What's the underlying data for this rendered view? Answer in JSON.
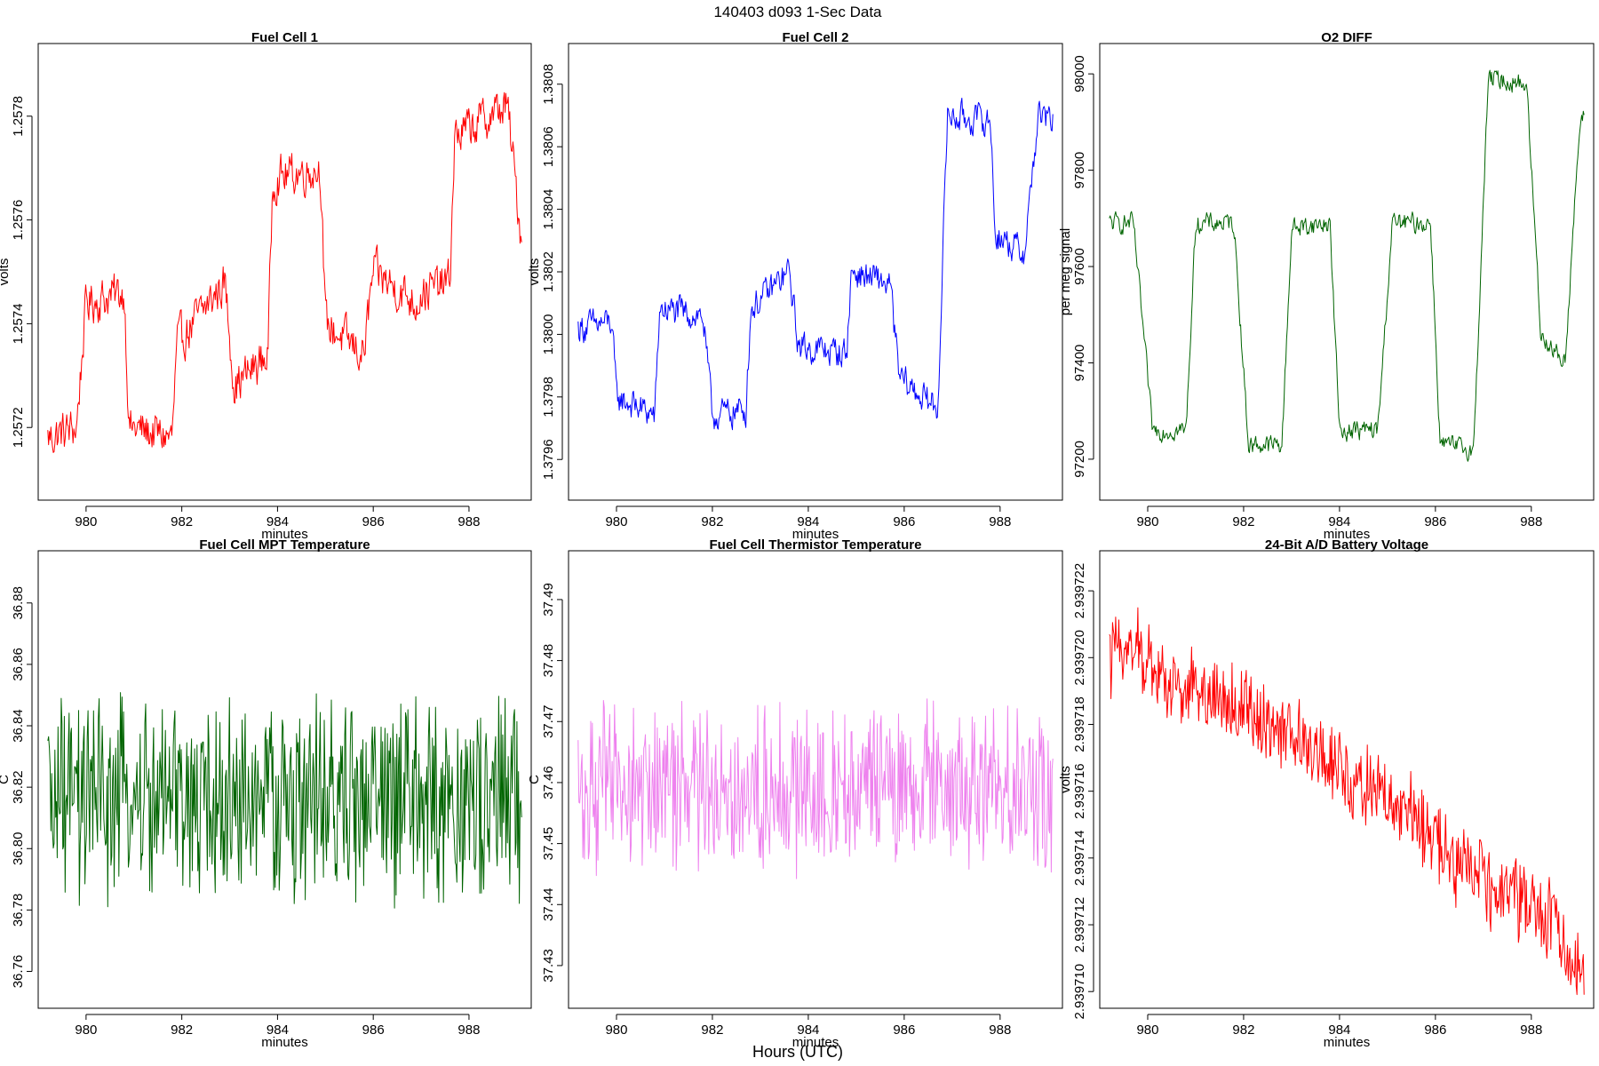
{
  "figure": {
    "super_title": "140403   d093   1-Sec Data",
    "x_axis_title": "Hours (UTC)"
  },
  "chart_data": [
    {
      "type": "line",
      "title": "Fuel Cell 1",
      "xlabel": "minutes",
      "ylabel": "volts",
      "color": "#ff0000",
      "xlim": [
        979.0,
        989.3
      ],
      "ylim": [
        1.25706,
        1.25794
      ],
      "xticks": [
        980,
        982,
        984,
        986,
        988
      ],
      "xtick_labels": [
        "980",
        "982",
        "984",
        "986",
        "988"
      ],
      "yticks": [
        1.2572,
        1.2574,
        1.2576,
        1.2578
      ],
      "ytick_labels": [
        "1.2572",
        "1.2574",
        "1.2576",
        "1.2578"
      ],
      "noise": 5e-05,
      "series": [
        {
          "name": "Fuel Cell 1",
          "x": [
            979.2,
            979.8,
            980.0,
            980.8,
            980.9,
            981.8,
            981.9,
            982.9,
            983.1,
            983.8,
            983.9,
            984.9,
            985.0,
            985.8,
            986.0,
            986.9,
            987.0,
            987.6,
            987.7,
            988.8,
            989.1
          ],
          "y": [
            1.25718,
            1.2572,
            1.25744,
            1.25746,
            1.2572,
            1.25718,
            1.25736,
            1.25748,
            1.25728,
            1.25734,
            1.25768,
            1.2577,
            1.2574,
            1.25734,
            1.2575,
            1.25744,
            1.25746,
            1.25748,
            1.25776,
            1.25782,
            1.25756
          ]
        }
      ]
    },
    {
      "type": "line",
      "title": "Fuel Cell 2",
      "xlabel": "minutes",
      "ylabel": "volts",
      "color": "#0000ff",
      "xlim": [
        979.0,
        989.3
      ],
      "ylim": [
        1.37947,
        1.38093
      ],
      "xticks": [
        980,
        982,
        984,
        986,
        988
      ],
      "xtick_labels": [
        "980",
        "982",
        "984",
        "986",
        "988"
      ],
      "yticks": [
        1.3796,
        1.3798,
        1.38,
        1.3802,
        1.3804,
        1.3806,
        1.3808
      ],
      "ytick_labels": [
        "1.3796",
        "1.3798",
        "1.3800",
        "1.3802",
        "1.3804",
        "1.3806",
        "1.3808"
      ],
      "noise": 6e-05,
      "series": [
        {
          "name": "Fuel Cell 2",
          "x": [
            979.2,
            979.9,
            980.0,
            980.8,
            980.9,
            981.8,
            982.0,
            982.7,
            982.8,
            983.6,
            983.8,
            984.8,
            984.9,
            985.7,
            985.9,
            986.7,
            986.9,
            987.8,
            987.9,
            988.5,
            988.8,
            989.1
          ],
          "y": [
            1.38002,
            1.38004,
            1.3798,
            1.37974,
            1.38008,
            1.38006,
            1.37974,
            1.37976,
            1.38008,
            1.3802,
            1.37996,
            1.37994,
            1.3802,
            1.38016,
            1.37986,
            1.37976,
            1.3807,
            1.38068,
            1.38032,
            1.38026,
            1.3807,
            1.38068
          ]
        }
      ]
    },
    {
      "type": "line",
      "title": "O2 DIFF",
      "xlabel": "minutes",
      "ylabel": "per meg signal",
      "color": "#006400",
      "xlim": [
        979.0,
        989.3
      ],
      "ylim": [
        97115,
        98063
      ],
      "xticks": [
        980,
        982,
        984,
        986,
        988
      ],
      "xtick_labels": [
        "980",
        "982",
        "984",
        "986",
        "988"
      ],
      "yticks": [
        97200,
        97400,
        97600,
        97800,
        98000
      ],
      "ytick_labels": [
        "97200",
        "97400",
        "97600",
        "97800",
        "98000"
      ],
      "noise": 25,
      "series": [
        {
          "name": "O2 DIFF",
          "x": [
            979.2,
            979.7,
            980.1,
            980.8,
            981.0,
            981.8,
            982.1,
            982.8,
            983.0,
            983.8,
            984.0,
            984.8,
            985.1,
            985.9,
            986.1,
            986.8,
            987.1,
            987.9,
            988.2,
            988.7,
            989.0,
            989.1
          ],
          "y": [
            97690,
            97690,
            97260,
            97260,
            97690,
            97690,
            97230,
            97230,
            97680,
            97690,
            97260,
            97260,
            97690,
            97690,
            97230,
            97220,
            97990,
            97980,
            97460,
            97400,
            97880,
            97910
          ]
        }
      ]
    },
    {
      "type": "line",
      "title": "Fuel Cell MPT Temperature",
      "xlabel": "minutes",
      "ylabel": "C",
      "color": "#006400",
      "xlim": [
        979.0,
        989.3
      ],
      "ylim": [
        36.748,
        36.897
      ],
      "xticks": [
        980,
        982,
        984,
        986,
        988
      ],
      "xtick_labels": [
        "980",
        "982",
        "984",
        "986",
        "988"
      ],
      "yticks": [
        36.76,
        36.78,
        36.8,
        36.82,
        36.84,
        36.86,
        36.88
      ],
      "ytick_labels": [
        "36.76",
        "36.78",
        "36.80",
        "36.82",
        "36.84",
        "36.86",
        "36.88"
      ],
      "noise": 0.032,
      "series": [
        {
          "name": "MPT Temperature",
          "x": [
            979.2,
            984.0,
            989.1
          ],
          "y": [
            36.815,
            36.815,
            36.815
          ]
        }
      ]
    },
    {
      "type": "line",
      "title": "Fuel Cell Thermistor Temperature",
      "xlabel": "minutes",
      "ylabel": "C",
      "color": "#ee82ee",
      "xlim": [
        979.0,
        989.3
      ],
      "ylim": [
        37.423,
        37.498
      ],
      "xticks": [
        980,
        982,
        984,
        986,
        988
      ],
      "xtick_labels": [
        "980",
        "982",
        "984",
        "986",
        "988"
      ],
      "yticks": [
        37.43,
        37.44,
        37.45,
        37.46,
        37.47,
        37.48,
        37.49
      ],
      "ytick_labels": [
        "37.43",
        "37.44",
        "37.45",
        "37.46",
        "37.47",
        "37.48",
        "37.49"
      ],
      "noise": 0.013,
      "series": [
        {
          "name": "Thermistor Temperature",
          "x": [
            979.2,
            984.0,
            989.1
          ],
          "y": [
            37.459,
            37.459,
            37.459
          ]
        }
      ]
    },
    {
      "type": "line",
      "title": "24-Bit A/D Battery Voltage",
      "xlabel": "minutes",
      "ylabel": "volts",
      "color": "#ff0000",
      "xlim": [
        979.0,
        989.3
      ],
      "ylim": [
        2.9397095,
        2.9397232
      ],
      "xticks": [
        980,
        982,
        984,
        986,
        988
      ],
      "xtick_labels": [
        "980",
        "982",
        "984",
        "986",
        "988"
      ],
      "yticks": [
        2.93971,
        2.939712,
        2.939714,
        2.939716,
        2.939718,
        2.93972,
        2.939722
      ],
      "ytick_labels": [
        "2.939710",
        "2.939712",
        "2.939714",
        "2.939716",
        "2.939718",
        "2.939720",
        "2.939722"
      ],
      "noise": 1.2e-06,
      "series": [
        {
          "name": "Battery Voltage",
          "x": [
            979.2,
            979.5,
            980.5,
            981.5,
            982.5,
            983.5,
            984.5,
            985.5,
            986.5,
            987.5,
            988.5,
            989.1
          ],
          "y": [
            2.93972,
            2.9397205,
            2.9397192,
            2.9397188,
            2.939718,
            2.9397172,
            2.9397162,
            2.9397152,
            2.9397138,
            2.9397128,
            2.939712,
            2.9397105
          ]
        }
      ]
    }
  ]
}
